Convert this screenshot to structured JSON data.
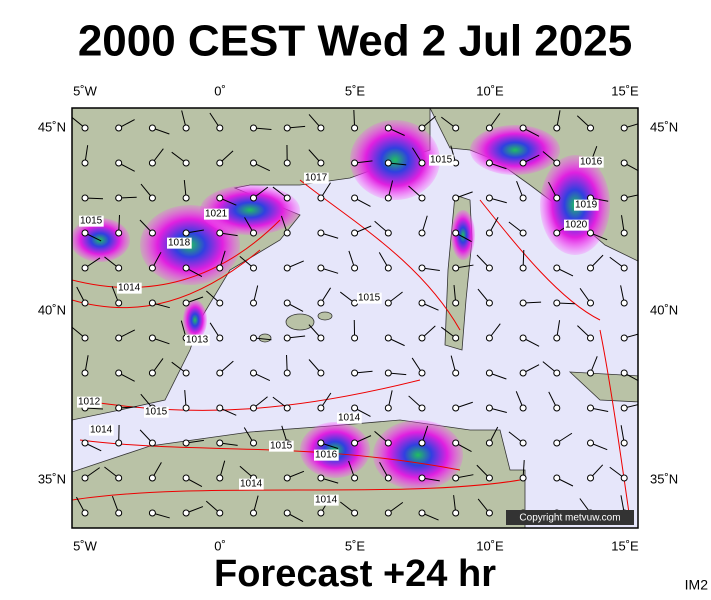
{
  "header": {
    "title": "2000 CEST Wed 2 Jul 2025"
  },
  "footer": {
    "forecast": "Forecast +24 hr",
    "code": "IM2"
  },
  "map": {
    "lon_labels": [
      "5˚W",
      "0˚",
      "5˚E",
      "10˚E",
      "15˚E"
    ],
    "lat_labels": [
      "45˚N",
      "40˚N",
      "35˚N"
    ],
    "copyright": "Copyright metvuw.com",
    "isobar_labels": [
      "1017",
      "1016",
      "1015",
      "1014",
      "1013",
      "1012",
      "1018",
      "1021",
      "1019",
      "1020"
    ]
  }
}
